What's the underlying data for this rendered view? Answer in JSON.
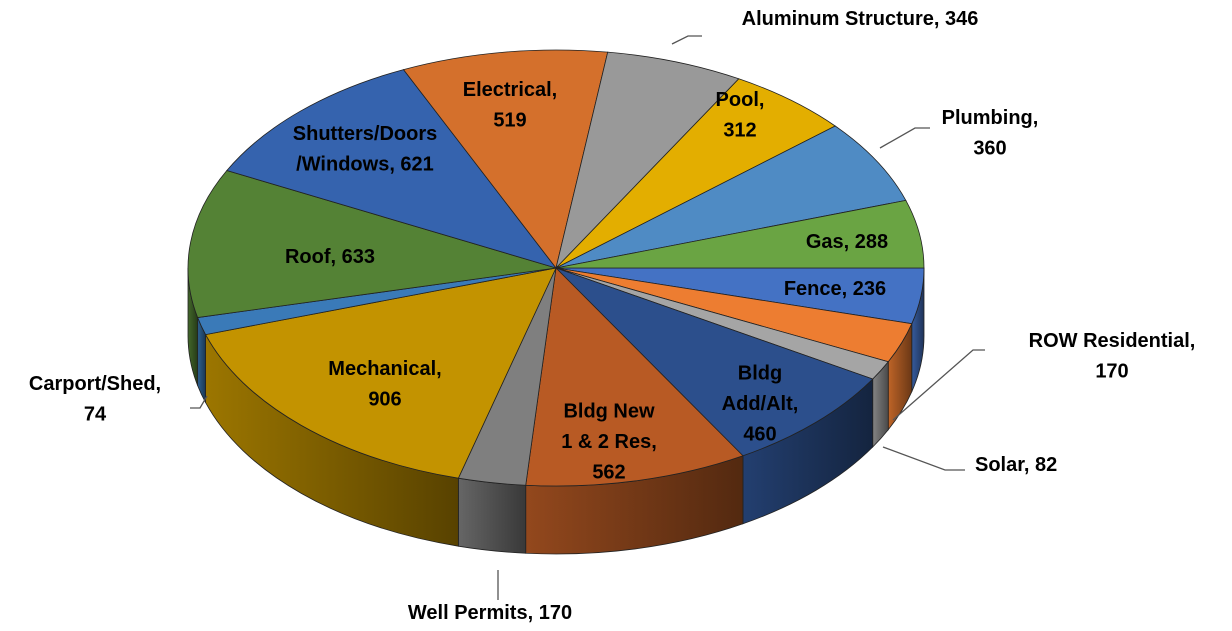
{
  "chart_data": {
    "type": "pie3d",
    "values": [
      236,
      170,
      82,
      460,
      562,
      170,
      906,
      74,
      633,
      621,
      519,
      346,
      312,
      360,
      288
    ],
    "value_labels": [
      "Fence, 236",
      "ROW Residential,\n170",
      "Solar, 82",
      "Bldg\nAdd/Alt,\n460",
      "Bldg New\n1 & 2 Res,\n562",
      "Well Permits, 170",
      "Mechanical,\n906",
      "Carport/Shed,\n74",
      "Roof, 633",
      "Shutters/Doors\n/Windows, 621",
      "Electrical,\n519",
      "Aluminum Structure, 346",
      "Pool,\n312",
      "Plumbing,\n360",
      "Gas, 288"
    ],
    "colors": [
      "#4472c4",
      "#ed7d31",
      "#a5a5a5",
      "#2c4f8c",
      "#b85a24",
      "#7f7f7f",
      "#c39300",
      "#3a7ab8",
      "#548235",
      "#3563ae",
      "#d4702c",
      "#999999",
      "#e3ae00",
      "#4f8bc4",
      "#6aa443"
    ]
  }
}
